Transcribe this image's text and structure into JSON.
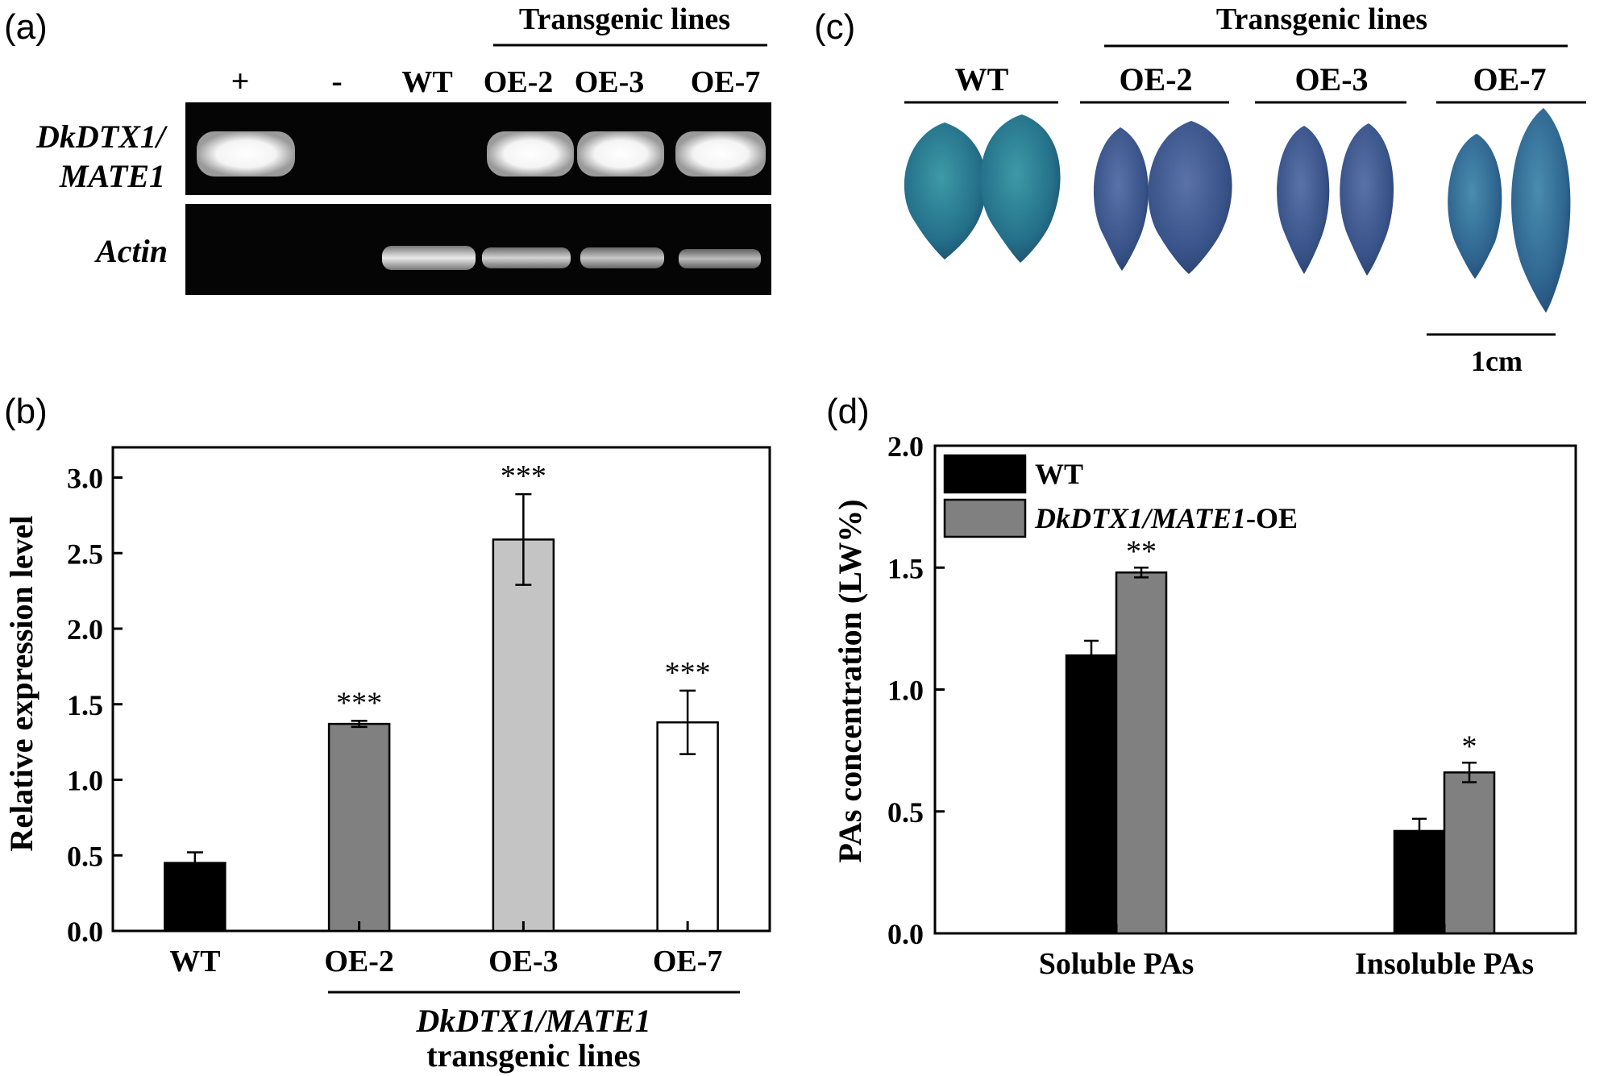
{
  "panel_a": {
    "label": "(a)",
    "group_header": "Transgenic lines",
    "lanes": [
      "+",
      "-",
      "WT",
      "OE-2",
      "OE-3",
      "OE-7"
    ],
    "gene_label_line1": "DkDTX1/",
    "gene_label_line2": "MATE1",
    "control_label": "Actin"
  },
  "panel_c": {
    "label": "(c)",
    "group_header": "Transgenic lines",
    "groups": [
      "WT",
      "OE-2",
      "OE-3",
      "OE-7"
    ],
    "scale_label": "1cm"
  },
  "panel_b": {
    "label": "(b)",
    "group_label_line1": "DkDTX1/MATE1",
    "group_label_line2": "transgenic lines"
  },
  "panel_d": {
    "label": "(d)"
  },
  "chart_data": [
    {
      "type": "bar",
      "panel": "b",
      "categories": [
        "WT",
        "OE-2",
        "OE-3",
        "OE-7"
      ],
      "values": [
        0.45,
        1.37,
        2.59,
        1.38
      ],
      "errors": [
        0.07,
        0.02,
        0.3,
        0.21
      ],
      "significance": [
        "",
        "***",
        "***",
        "***"
      ],
      "colors": [
        "#000000",
        "#808080",
        "#c4c4c4",
        "#ffffff"
      ],
      "ylabel": "Relative expression level",
      "ylim": [
        0,
        3.2
      ],
      "yticks": [
        "0.0",
        "0.5",
        "1.0",
        "1.5",
        "2.0",
        "2.5",
        "3.0"
      ]
    },
    {
      "type": "bar",
      "panel": "d",
      "categories": [
        "Soluble PAs",
        "Insoluble PAs"
      ],
      "series": [
        {
          "name": "WT",
          "values": [
            1.14,
            0.42
          ],
          "errors": [
            0.06,
            0.05
          ],
          "significance": [
            "",
            ""
          ],
          "color": "#000000"
        },
        {
          "name": "DkDTX1/MATE1-OE",
          "values": [
            1.48,
            0.66
          ],
          "errors": [
            0.02,
            0.04
          ],
          "significance": [
            "**",
            "*"
          ],
          "color": "#808080"
        }
      ],
      "ylabel": "PAs concentration (LW%)",
      "ylim": [
        0,
        2.0
      ],
      "yticks": [
        "0.0",
        "0.5",
        "1.0",
        "1.5",
        "2.0"
      ],
      "legend_position": "top-left"
    }
  ]
}
